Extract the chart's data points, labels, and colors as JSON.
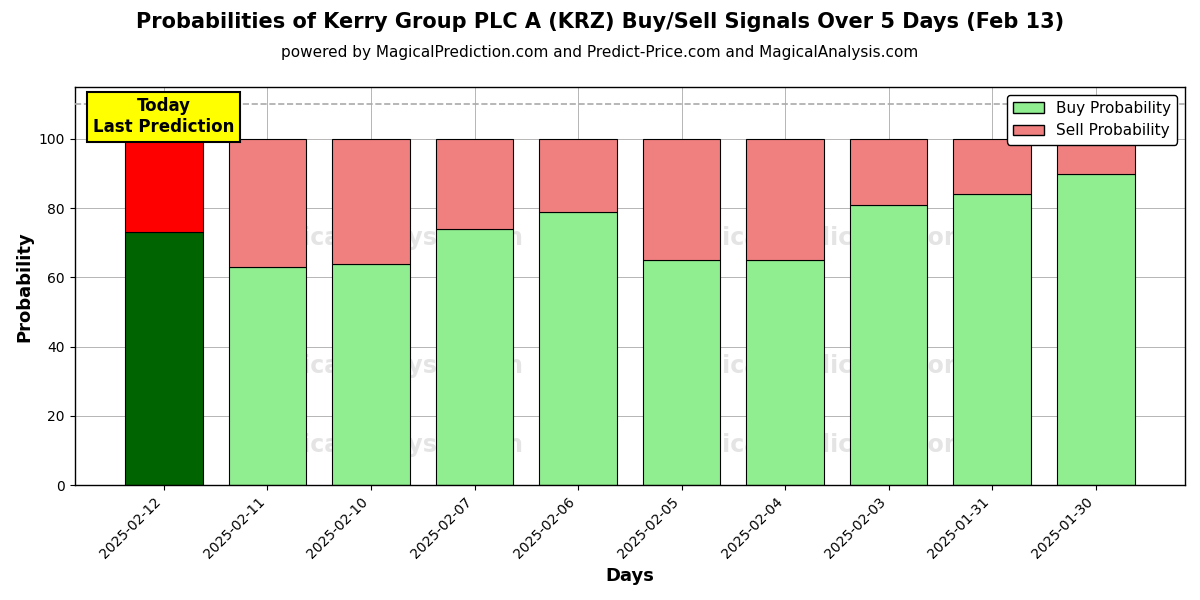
{
  "title": "Probabilities of Kerry Group PLC A (KRZ) Buy/Sell Signals Over 5 Days (Feb 13)",
  "subtitle": "powered by MagicalPrediction.com and Predict-Price.com and MagicalAnalysis.com",
  "xlabel": "Days",
  "ylabel": "Probability",
  "categories": [
    "2025-02-12",
    "2025-02-11",
    "2025-02-10",
    "2025-02-07",
    "2025-02-06",
    "2025-02-05",
    "2025-02-04",
    "2025-02-03",
    "2025-01-31",
    "2025-01-30"
  ],
  "buy_values": [
    73,
    63,
    64,
    74,
    79,
    65,
    65,
    81,
    84,
    90
  ],
  "sell_values": [
    27,
    37,
    36,
    26,
    21,
    35,
    35,
    19,
    16,
    10
  ],
  "today_buy_color": "#006400",
  "today_sell_color": "#FF0000",
  "buy_color": "#90EE90",
  "sell_color": "#F08080",
  "today_annotation_bg": "#FFFF00",
  "today_annotation_text": "Today\nLast Prediction",
  "dashed_line_y": 110,
  "ylim": [
    0,
    115
  ],
  "yticks": [
    0,
    20,
    40,
    60,
    80,
    100
  ],
  "legend_buy_label": "Buy Probability",
  "legend_sell_label": "Sell Probability",
  "bar_width": 0.75,
  "edgecolor": "black",
  "grid_color": "#aaaaaa",
  "background_color": "white",
  "title_fontsize": 15,
  "subtitle_fontsize": 11,
  "axis_label_fontsize": 13,
  "tick_fontsize": 10,
  "legend_fontsize": 11
}
